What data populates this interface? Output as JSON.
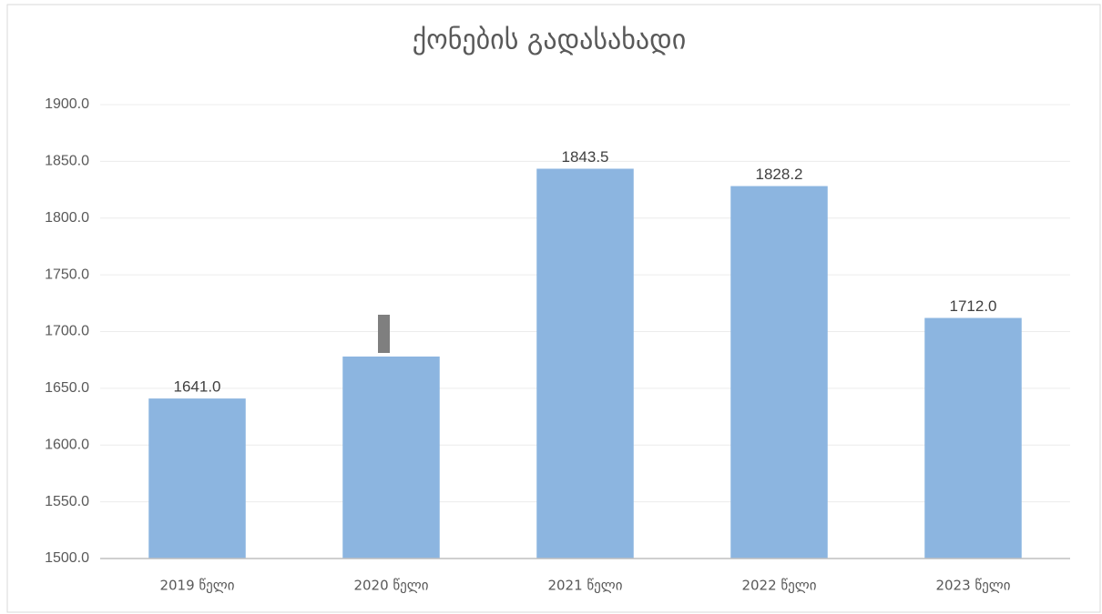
{
  "chart_data": {
    "type": "bar",
    "title": "ქონების გადასახადი",
    "categories": [
      "2019 წელი",
      "2020 წელი",
      "2021 წელი",
      "2022 წელი",
      "2023 წელი"
    ],
    "values": [
      1641.0,
      1678,
      1843.5,
      1828.2,
      1712.0
    ],
    "value_labels": [
      "1641.0",
      null,
      "1843.5",
      "1828.2",
      "1712.0"
    ],
    "color": "#8cb5e0",
    "ylim": [
      1500,
      1900
    ],
    "yticks": [
      {
        "value": 1500,
        "label": "1500.0"
      },
      {
        "value": 1550,
        "label": "1550.0"
      },
      {
        "value": 1600,
        "label": "1600.0"
      },
      {
        "value": 1650,
        "label": "1650.0"
      },
      {
        "value": 1700,
        "label": "1700.0"
      },
      {
        "value": 1750,
        "label": "1750.0"
      },
      {
        "value": 1800,
        "label": "1800.0"
      },
      {
        "value": 1850,
        "label": "1850.0"
      },
      {
        "value": 1900,
        "label": "1900.0"
      }
    ],
    "grid": true
  }
}
